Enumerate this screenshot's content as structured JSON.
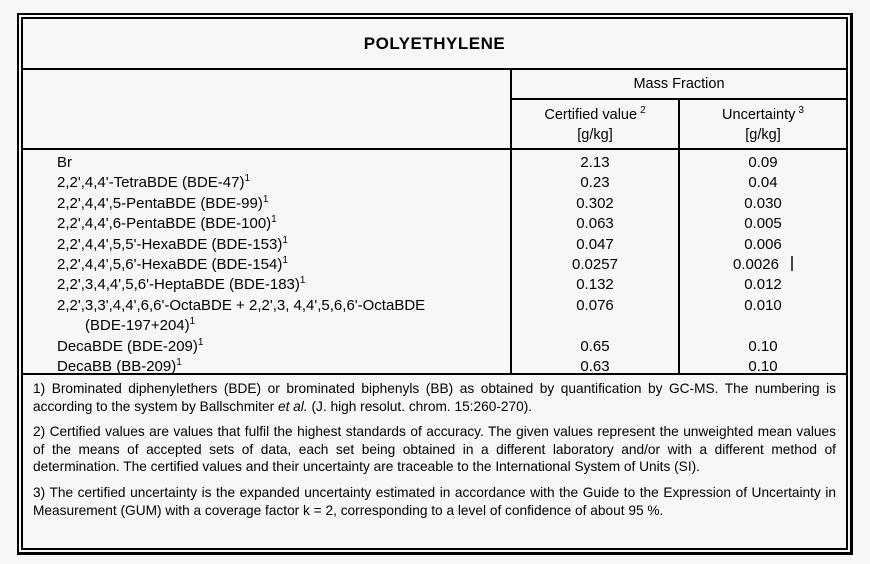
{
  "page": {
    "background_color": "#f7f7f7",
    "border_color": "#000000",
    "text_color": "#000000"
  },
  "title": "POLYETHYLENE",
  "table": {
    "group_header": "Mass Fraction",
    "columns": [
      {
        "label": "Certified value",
        "sup": "2",
        "unit": "[g/kg]"
      },
      {
        "label": "Uncertainty",
        "sup": "3",
        "unit": "[g/kg]"
      }
    ],
    "rows": [
      {
        "name": "Br",
        "sup": "",
        "certified": "2.13",
        "uncertainty": "0.09"
      },
      {
        "name": "2,2',4,4'-TetraBDE (BDE-47)",
        "sup": "1",
        "certified": "0.23",
        "uncertainty": "0.04"
      },
      {
        "name": "2,2',4,4',5-PentaBDE (BDE-99)",
        "sup": "1",
        "certified": "0.302",
        "uncertainty": "0.030"
      },
      {
        "name": "2,2',4,4',6-PentaBDE (BDE-100)",
        "sup": "1",
        "certified": "0.063",
        "uncertainty": "0.005"
      },
      {
        "name": "2,2',4,4',5,5'-HexaBDE (BDE-153)",
        "sup": "1",
        "certified": "0.047",
        "uncertainty": "0.006"
      },
      {
        "name": "2,2',4,4',5,6'-HexaBDE (BDE-154)",
        "sup": "1",
        "certified": "0.0257",
        "uncertainty": "0.0026",
        "cursor_artifact": true
      },
      {
        "name": "2,2',3,4,4',5,6'-HeptaBDE (BDE-183)",
        "sup": "1",
        "certified": "0.132",
        "uncertainty": "0.012"
      },
      {
        "name": "2,2',3,3',4,4',6,6'-OctaBDE + 2,2',3, 4,4',5,6,6'-OctaBDE",
        "sup": "",
        "certified": "0.076",
        "uncertainty": "0.010"
      },
      {
        "name": "(BDE-197+204)",
        "sup": "1",
        "indent": true,
        "certified": "",
        "uncertainty": ""
      },
      {
        "name": "DecaBDE (BDE-209)",
        "sup": "1",
        "certified": "0.65",
        "uncertainty": "0.10"
      },
      {
        "name": "DecaBB (BB-209)",
        "sup": "1",
        "certified": "0.63",
        "uncertainty": "0.10"
      }
    ]
  },
  "footnotes": [
    {
      "segments": [
        {
          "text": "1) Brominated diphenylethers (BDE) or brominated biphenyls (BB) as obtained by quantification by GC-MS. The numbering is according to the system by Ballschmiter "
        },
        {
          "text": "et al.",
          "italic": true
        },
        {
          "text": " (J. high resolut. chrom. 15:260-270)."
        }
      ]
    },
    {
      "segments": [
        {
          "text": "2) Certified values are values that fulfil the highest standards of accuracy. The given values represent the unweighted mean values of the means of accepted sets of data, each set being obtained in a different laboratory and/or with a different method of determination. The certified values and their uncertainty are traceable to the International System of Units (SI)."
        }
      ]
    },
    {
      "segments": [
        {
          "text": "3) The certified uncertainty is the expanded uncertainty estimated in accordance with the Guide to the Expression of Uncertainty in Measurement (GUM) with a coverage factor k = 2, corresponding to a level of confidence of about 95 %."
        }
      ]
    }
  ]
}
